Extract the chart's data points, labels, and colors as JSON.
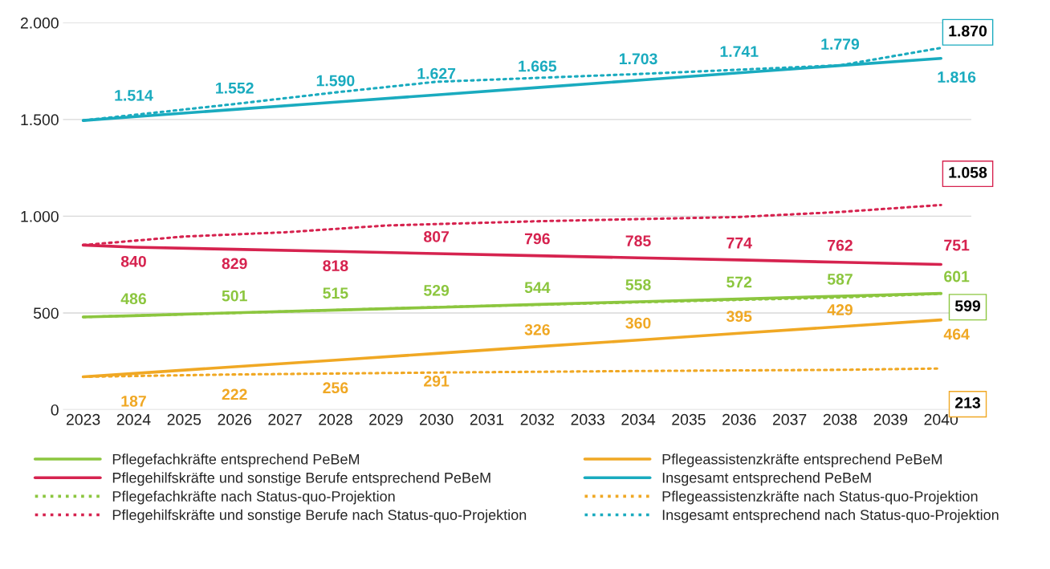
{
  "chart_data": {
    "type": "line",
    "xlim": [
      2022.6,
      2040.6
    ],
    "xticks": [
      2023,
      2024,
      2025,
      2026,
      2027,
      2028,
      2029,
      2030,
      2031,
      2032,
      2033,
      2034,
      2035,
      2036,
      2037,
      2038,
      2039,
      2040
    ],
    "ylim": [
      0,
      2000
    ],
    "yticks": [
      {
        "value": 0,
        "label": "0"
      },
      {
        "value": 500,
        "label": "500"
      },
      {
        "value": 1000,
        "label": "1.000"
      },
      {
        "value": 1500,
        "label": "1.500"
      },
      {
        "value": 2000,
        "label": "2.000"
      }
    ],
    "grid": "y",
    "legend": "bottom",
    "marker": "none",
    "series": [
      {
        "name": "Pflegefachkräfte entsprechend PeBeM",
        "color": "#8cc63f",
        "line_style": "solid",
        "x": [
          2023,
          2024,
          2026,
          2028,
          2030,
          2032,
          2034,
          2036,
          2038,
          2040
        ],
        "values": [
          479,
          486,
          501,
          515,
          529,
          544,
          558,
          572,
          587,
          601
        ],
        "value_labels": [
          null,
          "486",
          "501",
          "515",
          "529",
          "544",
          "558",
          "572",
          "587",
          "601"
        ]
      },
      {
        "name": "Pflegeassistenzkräfte entsprechend PeBeM",
        "color": "#f0a824",
        "line_style": "solid",
        "x": [
          2023,
          2024,
          2026,
          2028,
          2030,
          2032,
          2034,
          2036,
          2038,
          2040
        ],
        "values": [
          170,
          187,
          222,
          256,
          291,
          326,
          360,
          395,
          429,
          464
        ],
        "value_labels": [
          null,
          "187",
          "222",
          "256",
          "291",
          "326",
          "360",
          "395",
          "429",
          "464"
        ]
      },
      {
        "name": "Pflegehilfskräfte und sonstige Berufe entsprechend PeBeM",
        "color": "#d6234f",
        "line_style": "solid",
        "x": [
          2023,
          2024,
          2026,
          2028,
          2030,
          2032,
          2034,
          2036,
          2038,
          2040
        ],
        "values": [
          851,
          840,
          829,
          818,
          807,
          796,
          785,
          774,
          762,
          751
        ],
        "value_labels": [
          null,
          "840",
          "829",
          "818",
          "807",
          "796",
          "785",
          "774",
          "762",
          "751"
        ]
      },
      {
        "name": "Insgesamt entsprechend PeBeM",
        "color": "#1aabbf",
        "line_style": "solid",
        "x": [
          2023,
          2024,
          2026,
          2028,
          2030,
          2032,
          2034,
          2036,
          2038,
          2040
        ],
        "values": [
          1495,
          1514,
          1552,
          1590,
          1627,
          1665,
          1703,
          1741,
          1779,
          1816
        ],
        "value_labels": [
          null,
          "1.514",
          "1.552",
          "1.590",
          "1.627",
          "1.665",
          "1.703",
          "1.741",
          "1.779",
          "1.816"
        ]
      },
      {
        "name": "Pflegefachkräfte nach Status-quo-Projektion",
        "color": "#8cc63f",
        "line_style": "dotted",
        "x": [
          2023,
          2026,
          2030,
          2034,
          2038,
          2040
        ],
        "values": [
          479,
          500,
          530,
          555,
          580,
          599
        ],
        "value_labels": [
          null,
          null,
          null,
          null,
          null,
          "599"
        ]
      },
      {
        "name": "Pflegeassistenzkräfte nach Status-quo-Projektion",
        "color": "#f0a824",
        "line_style": "dotted",
        "x": [
          2023,
          2026,
          2030,
          2034,
          2038,
          2040
        ],
        "values": [
          170,
          182,
          192,
          200,
          206,
          213
        ],
        "value_labels": [
          null,
          null,
          null,
          null,
          null,
          "213"
        ]
      },
      {
        "name": "Pflegehilfskräfte und sonstige Berufe nach Status-quo-Projektion",
        "color": "#d6234f",
        "line_style": "dotted",
        "x": [
          2023,
          2025,
          2027,
          2029,
          2032,
          2036,
          2038,
          2040
        ],
        "values": [
          851,
          895,
          917,
          952,
          974,
          996,
          1022,
          1058
        ],
        "value_labels": [
          null,
          null,
          null,
          null,
          null,
          null,
          null,
          "1.058"
        ]
      },
      {
        "name": "Insgesamt entsprechend nach Status-quo-Projektion",
        "color": "#1aabbf",
        "line_style": "dotted",
        "x": [
          2023,
          2026,
          2028,
          2030,
          2034,
          2038,
          2040
        ],
        "values": [
          1495,
          1580,
          1640,
          1695,
          1735,
          1780,
          1870
        ],
        "value_labels": [
          null,
          null,
          null,
          null,
          null,
          null,
          "1.870"
        ]
      }
    ]
  }
}
